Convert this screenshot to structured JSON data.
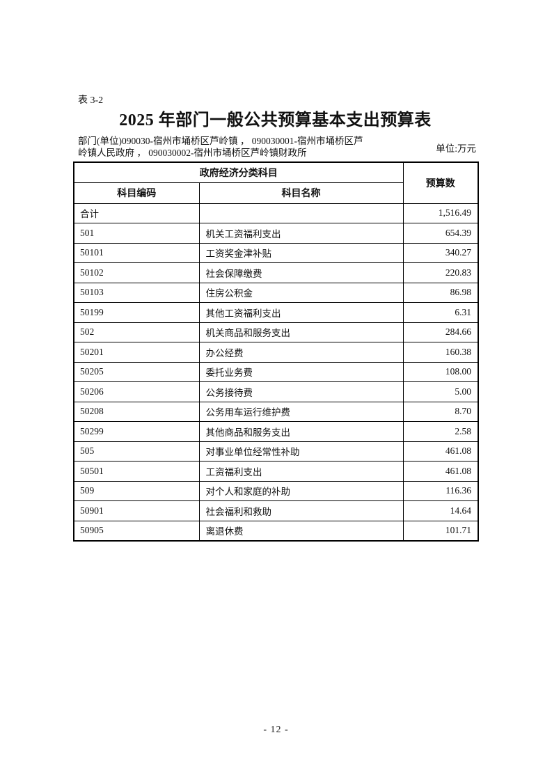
{
  "page": {
    "table_label": "表 3-2",
    "title": "2025 年部门一般公共预算基本支出预算表",
    "department_line1": "部门(单位)090030-宿州市埇桥区芦岭镇 ， 090030001-宿州市埇桥区芦",
    "department_line2": "岭镇人民政府 ， 090030002-宿州市埇桥区芦岭镇财政所",
    "unit_label": "单位:万元",
    "page_number": "- 12 -"
  },
  "table": {
    "header": {
      "group": "政府经济分类科目",
      "code": "科目编码",
      "name": "科目名称",
      "budget": "预算数"
    },
    "rows": [
      {
        "code": "合计",
        "name": "",
        "value": "1,516.49"
      },
      {
        "code": "501",
        "name": "机关工资福利支出",
        "value": "654.39"
      },
      {
        "code": "50101",
        "name": "工资奖金津补贴",
        "value": "340.27"
      },
      {
        "code": "50102",
        "name": "社会保障缴费",
        "value": "220.83"
      },
      {
        "code": "50103",
        "name": "住房公积金",
        "value": "86.98"
      },
      {
        "code": "50199",
        "name": "其他工资福利支出",
        "value": "6.31"
      },
      {
        "code": "502",
        "name": "机关商品和服务支出",
        "value": "284.66"
      },
      {
        "code": "50201",
        "name": "办公经费",
        "value": "160.38"
      },
      {
        "code": "50205",
        "name": "委托业务费",
        "value": "108.00"
      },
      {
        "code": "50206",
        "name": "公务接待费",
        "value": "5.00"
      },
      {
        "code": "50208",
        "name": "公务用车运行维护费",
        "value": "8.70"
      },
      {
        "code": "50299",
        "name": "其他商品和服务支出",
        "value": "2.58"
      },
      {
        "code": "505",
        "name": "对事业单位经常性补助",
        "value": "461.08"
      },
      {
        "code": "50501",
        "name": "工资福利支出",
        "value": "461.08"
      },
      {
        "code": "509",
        "name": "对个人和家庭的补助",
        "value": "116.36"
      },
      {
        "code": "50901",
        "name": "社会福利和救助",
        "value": "14.64"
      },
      {
        "code": "50905",
        "name": "离退休费",
        "value": "101.71"
      }
    ]
  }
}
